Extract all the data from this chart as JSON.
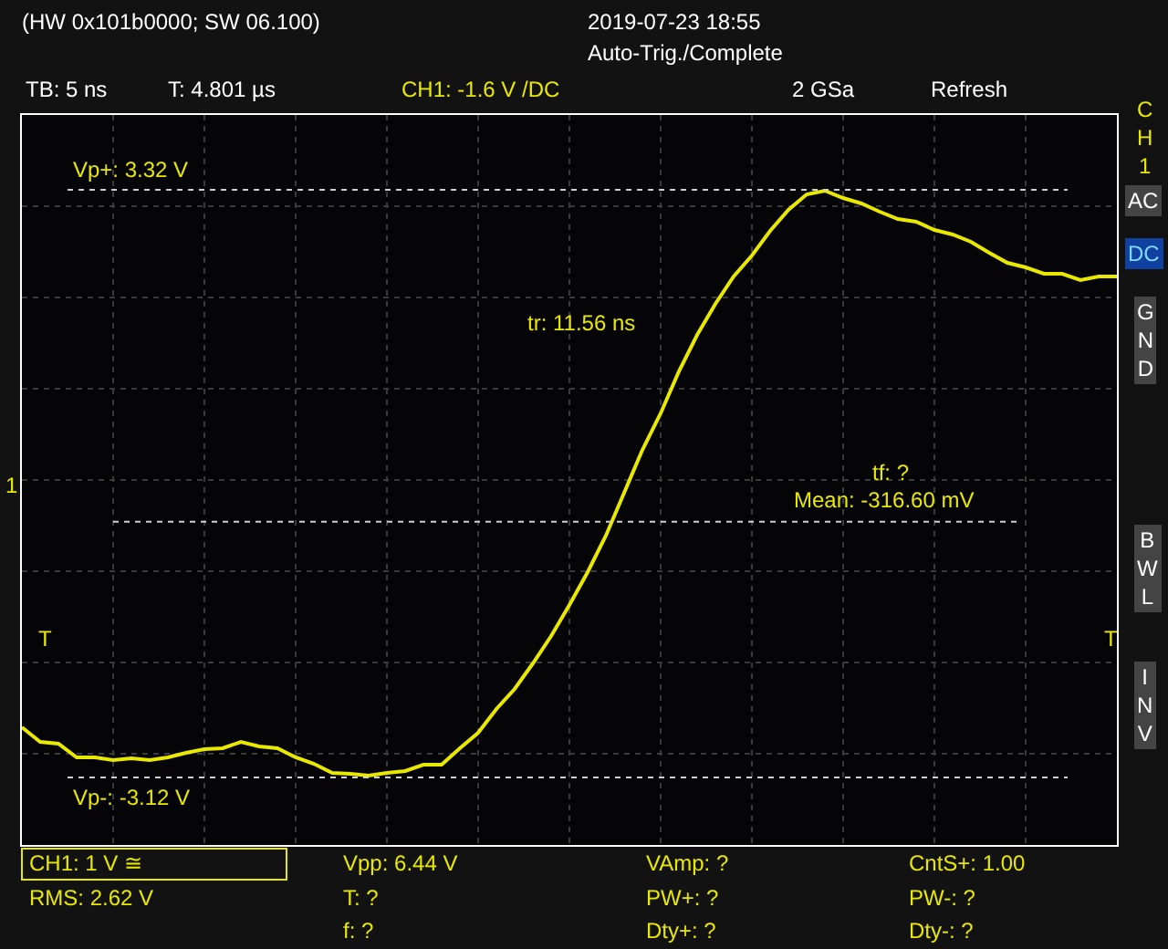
{
  "chart_data": {
    "type": "line",
    "categories": [
      null,
      null,
      null,
      null,
      null,
      null,
      null,
      null,
      null,
      null,
      null,
      null,
      null,
      null,
      null,
      null,
      null,
      null,
      null,
      null,
      null,
      null,
      null,
      null,
      null,
      null,
      null,
      null,
      null,
      null,
      null,
      null,
      null,
      null,
      null,
      null,
      null,
      null,
      null,
      null,
      null,
      null,
      null,
      null,
      null,
      null,
      null,
      null,
      null,
      null,
      null,
      null,
      null,
      null,
      null,
      null,
      null,
      null,
      null,
      null,
      null
    ],
    "series": [
      {
        "color": "#e8e800",
        "values": [
          -2.57,
          -2.73,
          -2.75,
          -2.9,
          -2.9,
          -2.93,
          -2.91,
          -2.93,
          -2.9,
          -2.85,
          -2.81,
          -2.8,
          -2.73,
          -2.78,
          -2.8,
          -2.9,
          -2.97,
          -3.07,
          -3.08,
          -3.1,
          -3.07,
          -3.05,
          -2.98,
          -2.98,
          -2.8,
          -2.63,
          -2.37,
          -2.15,
          -1.87,
          -1.57,
          -1.23,
          -0.87,
          -0.47,
          0.0,
          0.47,
          0.87,
          1.33,
          1.73,
          2.07,
          2.37,
          2.6,
          2.87,
          3.1,
          3.27,
          3.31,
          3.23,
          3.17,
          3.08,
          3.0,
          2.97,
          2.88,
          2.83,
          2.75,
          2.63,
          2.52,
          2.47,
          2.4,
          2.4,
          2.33,
          2.37,
          2.37
        ]
      }
    ],
    "ylim": [
      -3.86,
      4.14
    ],
    "yticks": [
      {
        "value": 3.14,
        "label": null
      },
      {
        "value": 2.14,
        "label": null
      },
      {
        "value": 1.14,
        "label": null
      },
      {
        "value": 0.14,
        "label": null
      },
      {
        "value": -0.86,
        "label": null
      },
      {
        "value": -1.86,
        "label": null
      },
      {
        "value": -2.86,
        "label": null
      }
    ],
    "grid": true,
    "ref_lines": [
      {
        "axis": "y",
        "value": 3.32,
        "label": "Vp+: 3.32 V",
        "color": "#d0d0d0",
        "line_style": "dotted"
      },
      {
        "axis": "y",
        "value": -3.12,
        "label": "Vp-: -3.12 V",
        "color": "#d0d0d0",
        "line_style": "dotted"
      },
      {
        "axis": "y",
        "value": -0.3166,
        "label": "Mean: -316.60 mV",
        "color": "#d0d0d0",
        "line_style": "dotted"
      }
    ],
    "annotations": [
      "(HW 0x101b0000; SW 06.100)",
      "2019-07-23 18:55",
      "Auto-Trig./Complete",
      "TB: 5 ns",
      "T: 4.801 µs",
      "CH1: -1.6 V /DC",
      "2 GSa",
      "Refresh",
      "CH1",
      "AC",
      "DC",
      "GND",
      "BWL",
      "INV",
      "tr: 11.56 ns",
      "tf: ?",
      "1",
      "T",
      "T",
      "CH1: 1 V ≅",
      "RMS: 2.62 V",
      "Vpp: 6.44 V",
      "T: ?",
      "f: ?",
      "VAmp: ?",
      "PW+: ?",
      "Dty+: ?",
      "CntS+: 1.00",
      "PW-: ?",
      "Dty-: ?"
    ]
  }
}
